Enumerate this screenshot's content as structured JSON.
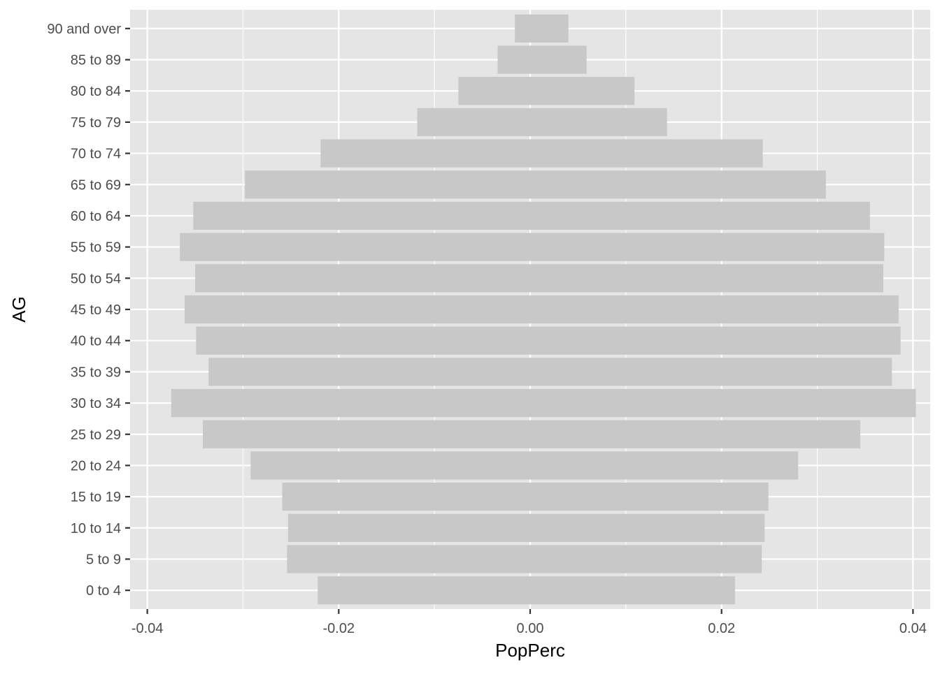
{
  "chart_data": {
    "type": "bar",
    "orientation": "horizontal",
    "xlabel": "PopPerc",
    "ylabel": "AG",
    "xlim": [
      -0.0418,
      0.0418
    ],
    "x_ticks": [
      -0.04,
      -0.02,
      0.0,
      0.02,
      0.04
    ],
    "x_tick_labels": [
      "-0.04",
      "-0.02",
      "0.00",
      "0.02",
      "0.04"
    ],
    "grid": true,
    "categories": [
      "0 to 4",
      "5 to 9",
      "10 to 14",
      "15 to 19",
      "20 to 24",
      "25 to 29",
      "30 to 34",
      "35 to 39",
      "40 to 44",
      "45 to 49",
      "50 to 54",
      "55 to 59",
      "60 to 64",
      "65 to 69",
      "70 to 74",
      "75 to 79",
      "80 to 84",
      "85 to 89",
      "90 and over"
    ],
    "series": [
      {
        "values": [
          -0.0222,
          -0.0254,
          -0.0253,
          -0.0259,
          -0.0292,
          -0.0342,
          -0.0375,
          -0.0336,
          -0.0349,
          -0.0361,
          -0.035,
          -0.0366,
          -0.0352,
          -0.0298,
          -0.0219,
          -0.0118,
          -0.0075,
          -0.0034,
          -0.0016
        ]
      },
      {
        "values": [
          0.0214,
          0.0242,
          0.0245,
          0.0249,
          0.028,
          0.0345,
          0.0403,
          0.0378,
          0.0387,
          0.0385,
          0.0369,
          0.037,
          0.0355,
          0.0309,
          0.0243,
          0.0143,
          0.0109,
          0.0059,
          0.004
        ]
      }
    ],
    "colors": {
      "bar": "#c8c8c8",
      "panel": "#e5e5e5",
      "grid": "#ffffff",
      "tick_text": "#4d4d4d",
      "title_text": "#000000"
    }
  }
}
